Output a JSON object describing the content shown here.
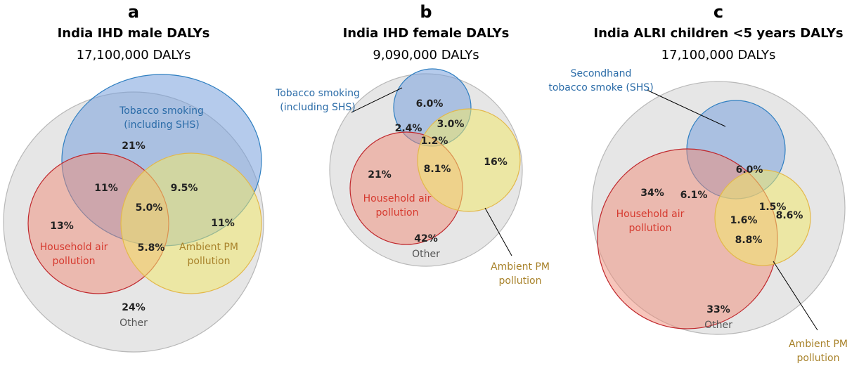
{
  "panels": [
    {
      "letter": "a",
      "title": "India IHD male DALYs",
      "subtitle": "17,100,000 DALYs",
      "sets": [
        {
          "label": [
            "Tobacco smoking",
            "(including SHS)"
          ]
        },
        {
          "label": [
            "Household air",
            "pollution"
          ]
        },
        {
          "label": [
            "Ambient PM",
            "pollution"
          ]
        }
      ],
      "regions": [
        "21%",
        "11%",
        "9.5%",
        "5.0%",
        "13%",
        "11%",
        "5.8%"
      ],
      "other": {
        "value": "24%",
        "label": "Other"
      }
    },
    {
      "letter": "b",
      "title": "India IHD female DALYs",
      "subtitle": "9,090,000 DALYs",
      "sets": [
        {
          "label": [
            "Tobacco smoking",
            "(including SHS)"
          ]
        },
        {
          "label": [
            "Household air",
            "pollution"
          ]
        },
        {
          "label": [
            "Ambient PM",
            "pollution"
          ]
        }
      ],
      "regions": [
        "6.0%",
        "2.4%",
        "3.0%",
        "1.2%",
        "21%",
        "8.1%",
        "16%"
      ],
      "other": {
        "value": "42%",
        "label": "Other"
      }
    },
    {
      "letter": "c",
      "title": "India ALRI children <5 years DALYs",
      "subtitle": "17,100,000 DALYs",
      "sets": [
        {
          "label": [
            "Secondhand",
            "tobacco smoke (SHS)"
          ]
        },
        {
          "label": [
            "Household air",
            "pollution"
          ]
        },
        {
          "label": [
            "Ambient PM",
            "pollution"
          ]
        }
      ],
      "regions": [
        "6.0%",
        "6.1%",
        "1.5%",
        "1.6%",
        "34%",
        "8.8%",
        "8.6%"
      ],
      "other": {
        "value": "33%",
        "label": "Other"
      }
    }
  ]
}
